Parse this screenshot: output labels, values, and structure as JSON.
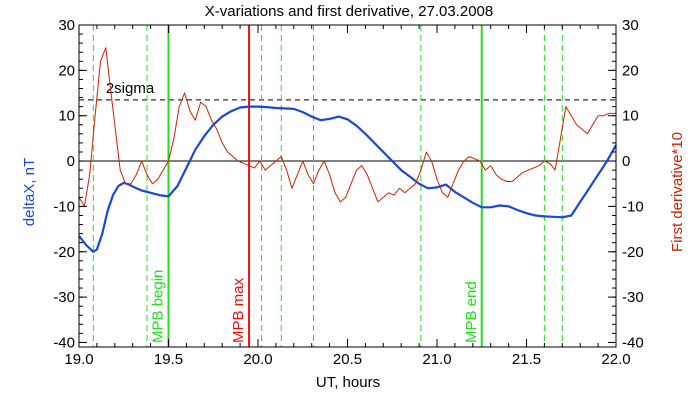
{
  "chart_data": {
    "type": "line",
    "title": "X-variations and first derivative, 27.03.2008",
    "xlabel": "UT, hours",
    "ylabel_left": "deltaX, nT",
    "ylabel_right": "First derivative*10",
    "xlim": [
      19.0,
      22.0
    ],
    "ylim": [
      -41,
      30
    ],
    "x_ticks": [
      19.0,
      19.5,
      20.0,
      20.5,
      21.0,
      21.5,
      22.0
    ],
    "x_tick_labels": [
      "19.0",
      "19.5",
      "20.0",
      "20.5",
      "21.0",
      "21.5",
      "22.0"
    ],
    "y_ticks": [
      -40,
      -30,
      -20,
      -10,
      0,
      10,
      20,
      30
    ],
    "y_tick_labels": [
      "-40",
      "-30",
      "-20",
      "-10",
      "0",
      "10",
      "20",
      "30"
    ],
    "colors": {
      "deltaX": "#1a47d6",
      "derivative": "#cc2200",
      "mpb_boundary": "#22dd22",
      "mpb_max": "#ee1111",
      "dashed_markers": "#22dd22",
      "sigma_line": "#000000",
      "zero_line": "#000000",
      "left_label": "#1a47d6",
      "right_label": "#cc2200"
    },
    "sigma_threshold": {
      "y": 13.5,
      "label": "2sigma"
    },
    "zero_line": {
      "y": 0
    },
    "vertical_markers": [
      {
        "x": 19.5,
        "label": "MPB begin",
        "kind": "mpb_boundary"
      },
      {
        "x": 19.95,
        "label": "MPB max",
        "kind": "mpb_max"
      },
      {
        "x": 21.25,
        "label": "MPB end",
        "kind": "mpb_boundary"
      }
    ],
    "dashed_markers_x": [
      19.08,
      19.38,
      20.02,
      20.13,
      20.31,
      20.91,
      21.6,
      21.7
    ],
    "series": [
      {
        "name": "deltaX",
        "axis": "left",
        "x": [
          19.0,
          19.04,
          19.08,
          19.1,
          19.13,
          19.16,
          19.19,
          19.22,
          19.25,
          19.28,
          19.31,
          19.35,
          19.4,
          19.45,
          19.5,
          19.55,
          19.6,
          19.65,
          19.7,
          19.75,
          19.8,
          19.85,
          19.9,
          19.95,
          20.0,
          20.05,
          20.1,
          20.15,
          20.2,
          20.25,
          20.3,
          20.35,
          20.4,
          20.45,
          20.5,
          20.55,
          20.6,
          20.65,
          20.7,
          20.75,
          20.8,
          20.85,
          20.9,
          20.95,
          21.0,
          21.05,
          21.1,
          21.15,
          21.2,
          21.25,
          21.3,
          21.35,
          21.4,
          21.45,
          21.5,
          21.55,
          21.6,
          21.65,
          21.7,
          21.75,
          21.8,
          21.85,
          21.9,
          21.95,
          22.0
        ],
        "y": [
          -16.5,
          -18.5,
          -20,
          -19.5,
          -16,
          -11,
          -7.5,
          -5.5,
          -4.8,
          -5.2,
          -5.8,
          -6.5,
          -7,
          -7.5,
          -7.8,
          -5.5,
          -1.5,
          2.5,
          5.5,
          8,
          9.8,
          11,
          11.8,
          12,
          12,
          11.9,
          11.7,
          11.6,
          11.5,
          10.8,
          9.8,
          9,
          9.3,
          9.8,
          9.2,
          7.8,
          6,
          4,
          2,
          0,
          -2,
          -3.5,
          -5,
          -6,
          -5.8,
          -5.2,
          -6.8,
          -8,
          -9.2,
          -10.2,
          -10.2,
          -9.8,
          -10,
          -10.8,
          -11.5,
          -12,
          -12.2,
          -12.3,
          -12.4,
          -12,
          -9,
          -6,
          -3,
          0,
          3.5
        ]
      },
      {
        "name": "First derivative*10",
        "axis": "right",
        "x": [
          19.0,
          19.03,
          19.06,
          19.09,
          19.12,
          19.15,
          19.17,
          19.2,
          19.23,
          19.26,
          19.29,
          19.32,
          19.35,
          19.38,
          19.41,
          19.44,
          19.47,
          19.5,
          19.53,
          19.56,
          19.59,
          19.62,
          19.65,
          19.68,
          19.71,
          19.74,
          19.77,
          19.8,
          19.83,
          19.86,
          19.89,
          19.92,
          19.95,
          19.98,
          20.01,
          20.04,
          20.07,
          20.1,
          20.13,
          20.16,
          20.19,
          20.22,
          20.25,
          20.28,
          20.31,
          20.34,
          20.37,
          20.4,
          20.43,
          20.46,
          20.49,
          20.52,
          20.55,
          20.58,
          20.61,
          20.64,
          20.67,
          20.7,
          20.73,
          20.76,
          20.79,
          20.82,
          20.85,
          20.88,
          20.91,
          20.94,
          20.97,
          21.0,
          21.03,
          21.06,
          21.09,
          21.12,
          21.15,
          21.18,
          21.21,
          21.24,
          21.27,
          21.3,
          21.33,
          21.36,
          21.39,
          21.42,
          21.45,
          21.48,
          21.51,
          21.54,
          21.57,
          21.6,
          21.63,
          21.66,
          21.69,
          21.72,
          21.75,
          21.78,
          21.81,
          21.84,
          21.87,
          21.9,
          21.93,
          21.96,
          22.0
        ],
        "y": [
          -8,
          -10,
          -3,
          10,
          22,
          25,
          18,
          8,
          -2,
          -5,
          -5,
          -3,
          0,
          -3,
          -5,
          -4,
          -2,
          0,
          5,
          12,
          15,
          11,
          9,
          13,
          12,
          9,
          7,
          4,
          2,
          1,
          0,
          -0.5,
          -1,
          -1.5,
          0,
          -2,
          -1,
          0,
          1,
          -2,
          -6,
          -3,
          0,
          -3,
          -5,
          -2,
          0,
          -3,
          -7,
          -9,
          -8,
          -5,
          -2,
          -1,
          -3,
          -6,
          -9,
          -8,
          -7,
          -7.5,
          -6,
          -7,
          -6,
          -5,
          -2,
          2,
          0,
          -4,
          -7,
          -8,
          -5,
          -2,
          0,
          1,
          0.5,
          0,
          -2,
          -1,
          -3,
          -4,
          -4.5,
          -4.5,
          -3.5,
          -2.5,
          -2,
          -1.5,
          -1,
          0,
          -0.5,
          -2,
          5,
          12,
          10,
          8,
          7,
          6,
          8,
          10,
          10,
          10.5,
          10.5
        ]
      }
    ]
  }
}
